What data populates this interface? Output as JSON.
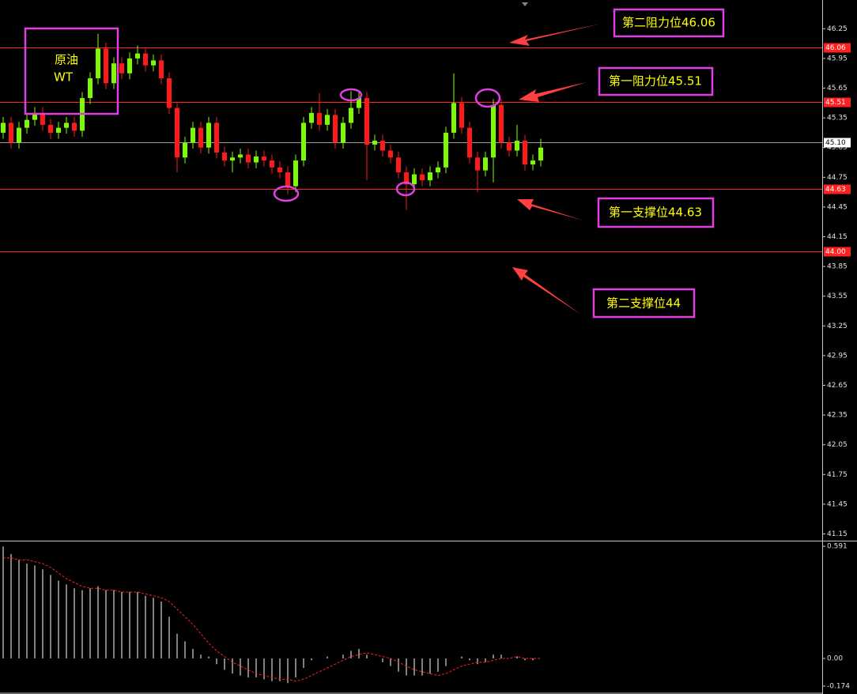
{
  "chart_data": [
    {
      "type": "candlestick",
      "up_color": "#7cfc00",
      "down_color": "#ff1a1a",
      "open": [
        45.2,
        45.3,
        45.1,
        45.25,
        45.33,
        45.4,
        45.28,
        45.2,
        45.25,
        45.3,
        45.22,
        45.55,
        45.75,
        46.05,
        45.7,
        45.9,
        45.8,
        45.95,
        46.0,
        45.88,
        45.93,
        45.75,
        45.45,
        44.95,
        45.1,
        45.25,
        45.05,
        45.3,
        45.0,
        44.92,
        44.95,
        44.98,
        44.9,
        44.96,
        44.92,
        44.85,
        44.8,
        44.66,
        44.92,
        45.3,
        45.4,
        45.28,
        45.38,
        45.1,
        45.3,
        45.45,
        45.55,
        45.08,
        45.12,
        45.02,
        44.95,
        44.8,
        44.68,
        44.78,
        44.72,
        44.8,
        44.85,
        45.2,
        45.5,
        45.25,
        44.95,
        44.82,
        44.95,
        45.48,
        45.1,
        45.02,
        45.12,
        44.88,
        44.92
      ],
      "high": [
        45.36,
        45.36,
        45.31,
        45.39,
        45.46,
        45.46,
        45.34,
        45.31,
        45.36,
        45.36,
        45.61,
        45.81,
        46.2,
        46.11,
        45.96,
        45.96,
        46.01,
        46.08,
        46.06,
        45.99,
        45.99,
        45.81,
        45.51,
        45.16,
        45.31,
        45.31,
        45.36,
        45.36,
        45.06,
        45.01,
        45.04,
        45.04,
        45.02,
        45.02,
        44.98,
        44.91,
        44.86,
        44.98,
        45.36,
        45.46,
        45.6,
        45.44,
        45.44,
        45.36,
        45.62,
        45.61,
        45.61,
        45.18,
        45.18,
        45.08,
        45.01,
        44.86,
        44.84,
        44.84,
        44.86,
        44.91,
        45.26,
        45.8,
        45.56,
        45.31,
        45.01,
        45.01,
        45.54,
        45.54,
        45.16,
        45.28,
        45.18,
        44.98,
        45.14
      ],
      "low": [
        45.14,
        45.04,
        45.04,
        45.19,
        45.27,
        45.22,
        45.14,
        45.14,
        45.19,
        45.16,
        45.16,
        45.49,
        45.69,
        45.64,
        45.64,
        45.74,
        45.74,
        45.89,
        45.82,
        45.82,
        45.69,
        45.39,
        44.8,
        44.89,
        45.04,
        44.99,
        44.99,
        44.94,
        44.86,
        44.8,
        44.89,
        44.84,
        44.84,
        44.86,
        44.79,
        44.74,
        44.58,
        44.6,
        44.86,
        45.24,
        45.22,
        45.22,
        45.04,
        45.04,
        45.24,
        45.39,
        44.72,
        45.02,
        44.96,
        44.89,
        44.74,
        44.42,
        44.62,
        44.66,
        44.66,
        44.74,
        44.79,
        45.14,
        45.19,
        44.89,
        44.6,
        44.76,
        44.7,
        45.04,
        44.96,
        44.96,
        44.82,
        44.82,
        44.86
      ],
      "close": [
        45.3,
        45.1,
        45.25,
        45.33,
        45.4,
        45.28,
        45.2,
        45.25,
        45.3,
        45.22,
        45.55,
        45.75,
        46.05,
        45.7,
        45.9,
        45.8,
        45.95,
        46.0,
        45.88,
        45.93,
        45.75,
        45.45,
        44.95,
        45.1,
        45.25,
        45.05,
        45.3,
        45.0,
        44.92,
        44.95,
        44.98,
        44.9,
        44.96,
        44.92,
        44.85,
        44.8,
        44.66,
        44.92,
        45.3,
        45.4,
        45.28,
        45.38,
        45.1,
        45.3,
        45.45,
        45.55,
        45.08,
        45.12,
        45.02,
        44.95,
        44.8,
        44.68,
        44.78,
        44.72,
        44.8,
        44.85,
        45.2,
        45.5,
        45.25,
        44.95,
        44.82,
        44.95,
        45.48,
        45.1,
        45.02,
        45.12,
        44.88,
        44.92,
        45.05
      ],
      "ylim": [
        41.09,
        46.54
      ],
      "yticks": [
        46.25,
        45.95,
        45.65,
        45.35,
        45.05,
        44.75,
        44.45,
        44.15,
        43.85,
        43.55,
        43.25,
        42.95,
        42.65,
        42.35,
        42.05,
        41.75,
        41.45,
        41.15
      ],
      "levels": [
        {
          "value": 46.06,
          "label": "46.06",
          "color": "#ff2020"
        },
        {
          "value": 45.51,
          "label": "45.51",
          "color": "#ff2020"
        },
        {
          "value": 45.1,
          "label": "45.10",
          "color": "#9a9a9a"
        },
        {
          "value": 44.63,
          "label": "44.63",
          "color": "#ff2020"
        },
        {
          "value": 44,
          "label": "44.00",
          "color": "#ff2020"
        }
      ],
      "annotations": [
        "第二阻力位46.06",
        "第一阻力位45.51",
        "第一支撑位44.63",
        "第二支撑位44"
      ],
      "symbol": [
        "原油",
        "WT"
      ]
    },
    {
      "type": "macd",
      "histogram": [
        0.59,
        0.55,
        0.52,
        0.5,
        0.49,
        0.47,
        0.44,
        0.41,
        0.39,
        0.37,
        0.36,
        0.37,
        0.38,
        0.36,
        0.36,
        0.35,
        0.35,
        0.35,
        0.33,
        0.32,
        0.3,
        0.22,
        0.13,
        0.09,
        0.05,
        0.02,
        0.01,
        -0.03,
        -0.06,
        -0.08,
        -0.09,
        -0.1,
        -0.1,
        -0.11,
        -0.12,
        -0.12,
        -0.13,
        -0.1,
        -0.05,
        -0.01,
        0.0,
        0.01,
        0.0,
        0.02,
        0.04,
        0.05,
        0.02,
        0.0,
        -0.02,
        -0.04,
        -0.07,
        -0.09,
        -0.09,
        -0.09,
        -0.08,
        -0.07,
        -0.04,
        0.0,
        0.01,
        -0.01,
        -0.03,
        -0.02,
        0.02,
        0.02,
        0.0,
        0.01,
        -0.01,
        -0.01,
        0.0
      ],
      "signal": [
        0.53,
        0.53,
        0.52,
        0.52,
        0.51,
        0.5,
        0.48,
        0.45,
        0.42,
        0.4,
        0.38,
        0.37,
        0.37,
        0.36,
        0.36,
        0.35,
        0.35,
        0.35,
        0.34,
        0.33,
        0.32,
        0.3,
        0.26,
        0.22,
        0.18,
        0.13,
        0.08,
        0.04,
        0.01,
        -0.02,
        -0.04,
        -0.06,
        -0.08,
        -0.09,
        -0.1,
        -0.11,
        -0.11,
        -0.12,
        -0.11,
        -0.09,
        -0.07,
        -0.05,
        -0.03,
        -0.01,
        0.01,
        0.02,
        0.03,
        0.02,
        0.01,
        0.0,
        -0.02,
        -0.04,
        -0.06,
        -0.07,
        -0.08,
        -0.09,
        -0.08,
        -0.06,
        -0.04,
        -0.03,
        -0.02,
        -0.02,
        -0.01,
        0.0,
        0.0,
        0.01,
        0.0,
        0.0,
        0.0
      ],
      "histogram_color": "#ffffff",
      "signal_color": "#ff2020",
      "ylim": [
        -0.1875,
        0.6125
      ],
      "yticks": [
        0.591,
        {
          "value": 0,
          "label": "0.00"
        },
        -0.174
      ]
    }
  ]
}
